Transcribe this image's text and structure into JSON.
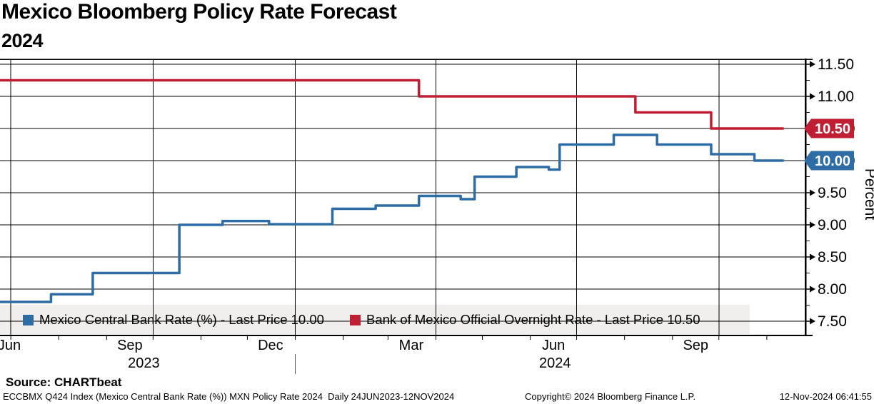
{
  "header": {
    "title": "Mexico Bloomberg Policy Rate Forecast",
    "subtitle": "2024"
  },
  "source_label": "Source: CHARTbeat",
  "footer": {
    "left": "ECCBMX Q424 Index (Mexico Central Bank Rate (%)) MXN Policy Rate 2024  Daily 24JUN2023-12NOV2024",
    "center": "Copyright© 2024 Bloomberg Finance L.P.",
    "right": "12-Nov-2024 06:41:55"
  },
  "colors": {
    "blue": "#2E6CA6",
    "red": "#C01E32",
    "grid": "#000000",
    "legend_bg": "#F0EFED",
    "badge_text": "#FFFFFF"
  },
  "legend": [
    {
      "label": "Mexico Central Bank Rate (%) - Last Price 10.00",
      "color": "#2E6CA6"
    },
    {
      "label": "Bank of Mexico Official Overnight Rate - Last Price 10.50",
      "color": "#C01E32"
    }
  ],
  "chart_data": {
    "type": "line",
    "step": true,
    "title": "Mexico Bloomberg Policy Rate Forecast 2024",
    "ylabel": "Percent",
    "ylim": [
      7.28,
      11.6
    ],
    "yticks": [
      7.5,
      8.0,
      8.5,
      9.0,
      9.5,
      10.0,
      10.5,
      11.0,
      11.5
    ],
    "x_domain": [
      "2023-06-24",
      "2024-11-26"
    ],
    "x_gridlines": [
      "2023-07-01",
      "2023-10-01",
      "2024-01-01",
      "2024-04-01",
      "2024-07-01",
      "2024-10-01"
    ],
    "month_ticks": [
      "2023-07-01",
      "2023-08-01",
      "2023-09-01",
      "2023-10-01",
      "2023-11-01",
      "2023-12-01",
      "2024-01-01",
      "2024-02-01",
      "2024-03-01",
      "2024-04-01",
      "2024-05-01",
      "2024-06-01",
      "2024-07-01",
      "2024-08-01",
      "2024-09-01",
      "2024-10-01",
      "2024-11-01"
    ],
    "x_labels": [
      {
        "label": "Jun",
        "date": "2023-06-30"
      },
      {
        "label": "Sep",
        "date": "2023-09-16"
      },
      {
        "label": "Dec",
        "date": "2023-12-16"
      },
      {
        "label": "Mar",
        "date": "2024-03-16"
      },
      {
        "label": "Jun",
        "date": "2024-06-16"
      },
      {
        "label": "Sep",
        "date": "2024-09-16"
      }
    ],
    "year_labels": [
      {
        "label": "2023",
        "date": "2023-09-25"
      },
      {
        "label": "2024",
        "date": "2024-06-17"
      }
    ],
    "year_separator": "2024-01-01",
    "series": [
      {
        "name": "Mexico Central Bank Rate (%)",
        "last_price": "10.00",
        "color_key": "blue",
        "points": [
          [
            "2023-06-24",
            7.8
          ],
          [
            "2023-07-27",
            7.92
          ],
          [
            "2023-08-23",
            8.25
          ],
          [
            "2023-10-18",
            9.0
          ],
          [
            "2023-11-15",
            9.06
          ],
          [
            "2023-12-15",
            9.01
          ],
          [
            "2024-01-25",
            9.25
          ],
          [
            "2024-02-22",
            9.3
          ],
          [
            "2024-03-21",
            9.45
          ],
          [
            "2024-04-17",
            9.4
          ],
          [
            "2024-04-26",
            9.75
          ],
          [
            "2024-05-23",
            9.9
          ],
          [
            "2024-06-13",
            9.86
          ],
          [
            "2024-06-20",
            10.25
          ],
          [
            "2024-07-25",
            10.4
          ],
          [
            "2024-08-22",
            10.25
          ],
          [
            "2024-09-26",
            10.1
          ],
          [
            "2024-10-24",
            10.0
          ],
          [
            "2024-11-12",
            10.0
          ]
        ]
      },
      {
        "name": "Bank of Mexico Official Overnight Rate",
        "last_price": "10.50",
        "color_key": "red",
        "points": [
          [
            "2023-06-24",
            11.25
          ],
          [
            "2024-03-21",
            11.0
          ],
          [
            "2024-08-08",
            10.75
          ],
          [
            "2024-09-26",
            10.5
          ],
          [
            "2024-11-12",
            10.5
          ]
        ]
      }
    ]
  }
}
